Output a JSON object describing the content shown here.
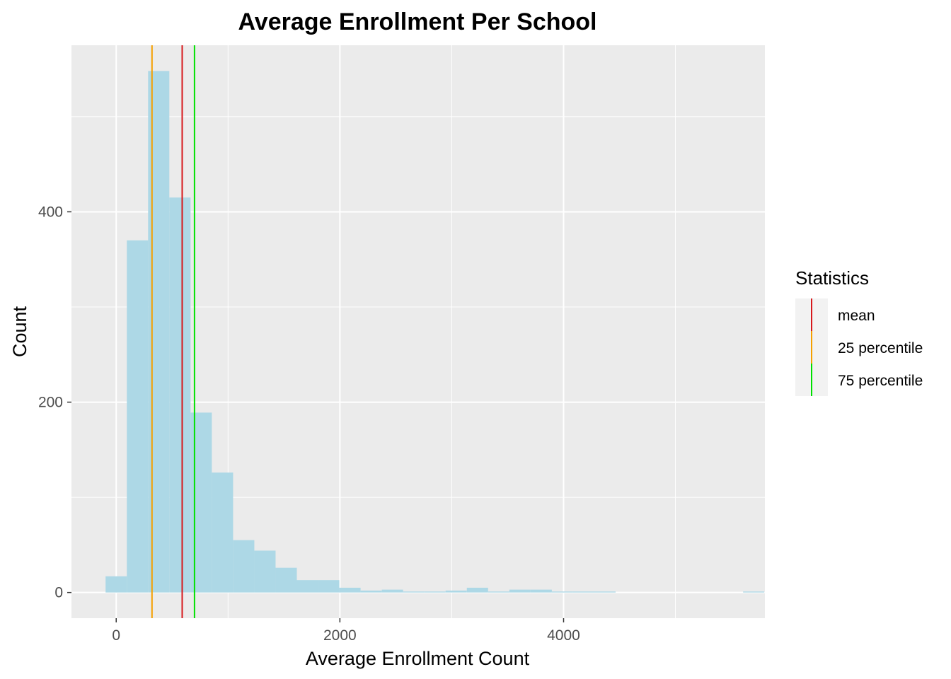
{
  "chart_data": {
    "type": "bar",
    "subtype": "histogram",
    "title": "Average Enrollment Per School",
    "xlabel": "Average Enrollment Count",
    "ylabel": "Count",
    "xlim": [
      -400,
      5800
    ],
    "ylim": [
      -27,
      575
    ],
    "x_ticks": [
      0,
      2000,
      4000
    ],
    "y_ticks": [
      0,
      200,
      400
    ],
    "x_tick_labels": [
      "0",
      "2000",
      "4000"
    ],
    "y_tick_labels": [
      "0",
      "200",
      "400"
    ],
    "bin_width": 190,
    "bins": [
      {
        "x_start": -95,
        "count": 17
      },
      {
        "x_start": 95,
        "count": 370
      },
      {
        "x_start": 285,
        "count": 548
      },
      {
        "x_start": 475,
        "count": 415
      },
      {
        "x_start": 665,
        "count": 189
      },
      {
        "x_start": 855,
        "count": 126
      },
      {
        "x_start": 1045,
        "count": 55
      },
      {
        "x_start": 1235,
        "count": 44
      },
      {
        "x_start": 1425,
        "count": 26
      },
      {
        "x_start": 1615,
        "count": 13
      },
      {
        "x_start": 1805,
        "count": 13
      },
      {
        "x_start": 1995,
        "count": 5
      },
      {
        "x_start": 2185,
        "count": 2
      },
      {
        "x_start": 2375,
        "count": 3
      },
      {
        "x_start": 2565,
        "count": 1
      },
      {
        "x_start": 2755,
        "count": 1
      },
      {
        "x_start": 2945,
        "count": 2
      },
      {
        "x_start": 3135,
        "count": 5
      },
      {
        "x_start": 3325,
        "count": 1
      },
      {
        "x_start": 3515,
        "count": 3
      },
      {
        "x_start": 3705,
        "count": 3
      },
      {
        "x_start": 3895,
        "count": 1
      },
      {
        "x_start": 4085,
        "count": 1
      },
      {
        "x_start": 4275,
        "count": 1
      },
      {
        "x_start": 5605,
        "count": 1
      }
    ],
    "bar_color": "#add8e6",
    "vlines": [
      {
        "name": "mean",
        "x": 590,
        "color": "#d7191c"
      },
      {
        "name": "25 percentile",
        "x": 320,
        "color": "#f5a000"
      },
      {
        "name": "75 percentile",
        "x": 700,
        "color": "#00e000"
      }
    ],
    "legend": {
      "title": "Statistics",
      "position": "right",
      "items": [
        {
          "label": "mean",
          "color": "#d7191c"
        },
        {
          "label": "25 percentile",
          "color": "#f5a000"
        },
        {
          "label": "75 percentile",
          "color": "#00e000"
        }
      ]
    },
    "grid": true,
    "panel_background": "#ebebeb"
  }
}
